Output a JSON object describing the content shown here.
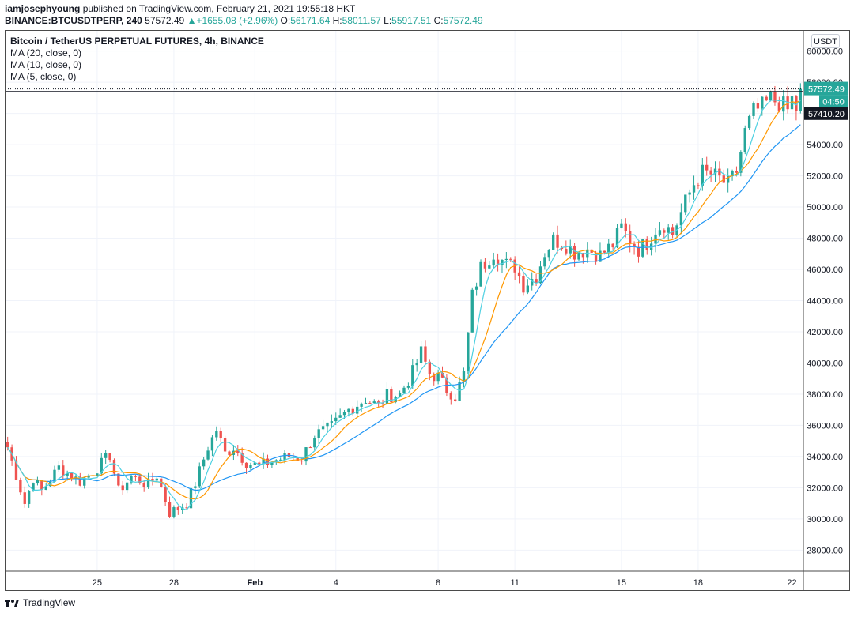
{
  "publisher": {
    "author": "iamjosephyoung",
    "text": "published on TradingView.com, February 21, 2021 19:55:18 HKT"
  },
  "ohlc_line": {
    "symbol": "BINANCE:BTCUSDTPERP, 240",
    "last": "57572.49",
    "change": "+1655.08 (+2.96%)",
    "o_label": "O:",
    "o": "56171.64",
    "h_label": "H:",
    "h": "58011.57",
    "l_label": "L:",
    "l": "55917.51",
    "c_label": "C:",
    "c": "57572.49"
  },
  "legend": {
    "title": "Bitcoin / TetherUS PERPETUAL FUTURES, 4h, BINANCE",
    "ma1": "MA (20, close, 0)",
    "ma2": "MA (10, close, 0)",
    "ma3": "MA (5, close, 0)"
  },
  "currency_button": "USDT",
  "footer": {
    "brand": "TradingView"
  },
  "colors": {
    "up": "#26a69a",
    "down": "#ef5350",
    "ma20": "#2196f3",
    "ma10": "#ff9800",
    "ma5": "#4dd0e1",
    "grid": "#f0f3fa"
  },
  "chart_data": {
    "type": "candlestick",
    "title": "Bitcoin / TetherUS PERPETUAL FUTURES, 4h, BINANCE",
    "ylim": [
      26700,
      61300
    ],
    "y_ticks": [
      "28000.00",
      "30000.00",
      "32000.00",
      "34000.00",
      "36000.00",
      "38000.00",
      "40000.00",
      "42000.00",
      "44000.00",
      "46000.00",
      "48000.00",
      "50000.00",
      "52000.00",
      "54000.00",
      "56000.00",
      "58000.00",
      "60000.00"
    ],
    "x_ticks": [
      "25",
      "28",
      "Feb",
      "4",
      "8",
      "11",
      "15",
      "18",
      "22"
    ],
    "x_tick_index": [
      21,
      39,
      58,
      77,
      101,
      119,
      144,
      162,
      184
    ],
    "price_labels": {
      "last": "57572.49",
      "countdown": "04:50",
      "prev": "57410.20"
    },
    "last_price": 57572.49,
    "prev_price": 57410.2,
    "period": "4h",
    "keyframes": [
      [
        0,
        34600
      ],
      [
        4,
        31000
      ],
      [
        6,
        32600
      ],
      [
        8,
        31800
      ],
      [
        12,
        33300
      ],
      [
        17,
        32400
      ],
      [
        20,
        33000
      ],
      [
        24,
        34100
      ],
      [
        26,
        31800
      ],
      [
        29,
        32700
      ],
      [
        33,
        32200
      ],
      [
        35,
        32800
      ],
      [
        38,
        30400
      ],
      [
        40,
        30700
      ],
      [
        42,
        31000
      ],
      [
        44,
        32300
      ],
      [
        47,
        34600
      ],
      [
        49,
        35700
      ],
      [
        51,
        34200
      ],
      [
        53,
        34600
      ],
      [
        56,
        33600
      ],
      [
        59,
        33400
      ],
      [
        62,
        33700
      ],
      [
        66,
        34000
      ],
      [
        69,
        33900
      ],
      [
        72,
        35400
      ],
      [
        76,
        35900
      ],
      [
        80,
        37000
      ],
      [
        84,
        37700
      ],
      [
        87,
        37200
      ],
      [
        89,
        37900
      ],
      [
        92,
        38000
      ],
      [
        95,
        39400
      ],
      [
        97,
        40700
      ],
      [
        99,
        39300
      ],
      [
        101,
        39100
      ],
      [
        103,
        38300
      ],
      [
        105,
        37900
      ],
      [
        107,
        39300
      ],
      [
        109,
        44300
      ],
      [
        111,
        46100
      ],
      [
        114,
        47100
      ],
      [
        117,
        46300
      ],
      [
        119,
        46200
      ],
      [
        121,
        45000
      ],
      [
        124,
        45600
      ],
      [
        126,
        47100
      ],
      [
        128,
        47900
      ],
      [
        131,
        47600
      ],
      [
        133,
        47100
      ],
      [
        136,
        47300
      ],
      [
        139,
        46900
      ],
      [
        142,
        47600
      ],
      [
        144,
        48700
      ],
      [
        146,
        47900
      ],
      [
        148,
        47300
      ],
      [
        150,
        47700
      ],
      [
        152,
        48600
      ],
      [
        154,
        48900
      ],
      [
        156,
        48300
      ],
      [
        159,
        50300
      ],
      [
        161,
        51500
      ],
      [
        163,
        52200
      ],
      [
        165,
        52100
      ],
      [
        167,
        51800
      ],
      [
        169,
        51400
      ],
      [
        171,
        52300
      ],
      [
        173,
        54800
      ],
      [
        175,
        56100
      ],
      [
        177,
        56400
      ],
      [
        179,
        56900
      ],
      [
        181,
        56700
      ],
      [
        183,
        56200
      ],
      [
        185,
        57572
      ]
    ],
    "ma_series": [
      {
        "name": "MA (20, close, 0)",
        "period": 20,
        "color": "#2196f3"
      },
      {
        "name": "MA (10, close, 0)",
        "period": 10,
        "color": "#ff9800"
      },
      {
        "name": "MA (5, close, 0)",
        "period": 5,
        "color": "#4dd0e1"
      }
    ]
  }
}
